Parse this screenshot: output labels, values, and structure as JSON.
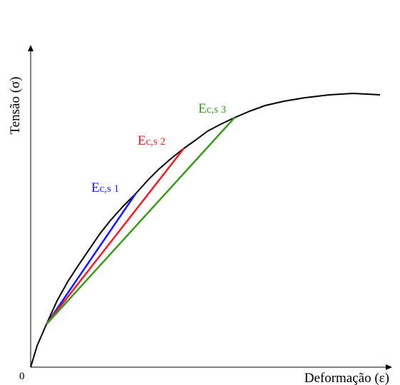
{
  "diagram": {
    "type": "stress-strain-curve",
    "axes": {
      "x_label": "Deformação (ε)",
      "y_label": "Tensão (σ)",
      "origin_label": "0"
    },
    "secants": [
      {
        "label": "Ec,s 1",
        "label_main": "E",
        "label_sub": "c,s 1",
        "color": "#1a1aff"
      },
      {
        "label": "Ec,s 2",
        "label_main": "E",
        "label_sub": "c,s 2",
        "color": "#ee1c24"
      },
      {
        "label": "Ec,s 3",
        "label_main": "E",
        "label_sub": "c,s 3",
        "color": "#3a9a1a"
      }
    ],
    "colors": {
      "curve": "#000000",
      "axes": "#000000"
    }
  }
}
